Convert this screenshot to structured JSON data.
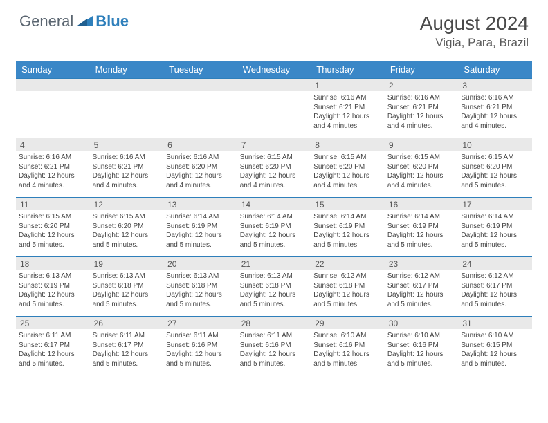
{
  "logo": {
    "general": "General",
    "blue": "Blue"
  },
  "title": {
    "month": "August 2024",
    "location": "Vigia, Para, Brazil"
  },
  "dow": [
    "Sunday",
    "Monday",
    "Tuesday",
    "Wednesday",
    "Thursday",
    "Friday",
    "Saturday"
  ],
  "colors": {
    "header_bg": "#3a87c7",
    "week_border": "#2e7fbb",
    "daynum_bg": "#e9e9e9",
    "text": "#444444"
  },
  "weeks": [
    [
      null,
      null,
      null,
      null,
      {
        "n": "1",
        "sr": "6:16 AM",
        "ss": "6:21 PM",
        "dl": "12 hours and 4 minutes."
      },
      {
        "n": "2",
        "sr": "6:16 AM",
        "ss": "6:21 PM",
        "dl": "12 hours and 4 minutes."
      },
      {
        "n": "3",
        "sr": "6:16 AM",
        "ss": "6:21 PM",
        "dl": "12 hours and 4 minutes."
      }
    ],
    [
      {
        "n": "4",
        "sr": "6:16 AM",
        "ss": "6:21 PM",
        "dl": "12 hours and 4 minutes."
      },
      {
        "n": "5",
        "sr": "6:16 AM",
        "ss": "6:21 PM",
        "dl": "12 hours and 4 minutes."
      },
      {
        "n": "6",
        "sr": "6:16 AM",
        "ss": "6:20 PM",
        "dl": "12 hours and 4 minutes."
      },
      {
        "n": "7",
        "sr": "6:15 AM",
        "ss": "6:20 PM",
        "dl": "12 hours and 4 minutes."
      },
      {
        "n": "8",
        "sr": "6:15 AM",
        "ss": "6:20 PM",
        "dl": "12 hours and 4 minutes."
      },
      {
        "n": "9",
        "sr": "6:15 AM",
        "ss": "6:20 PM",
        "dl": "12 hours and 4 minutes."
      },
      {
        "n": "10",
        "sr": "6:15 AM",
        "ss": "6:20 PM",
        "dl": "12 hours and 5 minutes."
      }
    ],
    [
      {
        "n": "11",
        "sr": "6:15 AM",
        "ss": "6:20 PM",
        "dl": "12 hours and 5 minutes."
      },
      {
        "n": "12",
        "sr": "6:15 AM",
        "ss": "6:20 PM",
        "dl": "12 hours and 5 minutes."
      },
      {
        "n": "13",
        "sr": "6:14 AM",
        "ss": "6:19 PM",
        "dl": "12 hours and 5 minutes."
      },
      {
        "n": "14",
        "sr": "6:14 AM",
        "ss": "6:19 PM",
        "dl": "12 hours and 5 minutes."
      },
      {
        "n": "15",
        "sr": "6:14 AM",
        "ss": "6:19 PM",
        "dl": "12 hours and 5 minutes."
      },
      {
        "n": "16",
        "sr": "6:14 AM",
        "ss": "6:19 PM",
        "dl": "12 hours and 5 minutes."
      },
      {
        "n": "17",
        "sr": "6:14 AM",
        "ss": "6:19 PM",
        "dl": "12 hours and 5 minutes."
      }
    ],
    [
      {
        "n": "18",
        "sr": "6:13 AM",
        "ss": "6:19 PM",
        "dl": "12 hours and 5 minutes."
      },
      {
        "n": "19",
        "sr": "6:13 AM",
        "ss": "6:18 PM",
        "dl": "12 hours and 5 minutes."
      },
      {
        "n": "20",
        "sr": "6:13 AM",
        "ss": "6:18 PM",
        "dl": "12 hours and 5 minutes."
      },
      {
        "n": "21",
        "sr": "6:13 AM",
        "ss": "6:18 PM",
        "dl": "12 hours and 5 minutes."
      },
      {
        "n": "22",
        "sr": "6:12 AM",
        "ss": "6:18 PM",
        "dl": "12 hours and 5 minutes."
      },
      {
        "n": "23",
        "sr": "6:12 AM",
        "ss": "6:17 PM",
        "dl": "12 hours and 5 minutes."
      },
      {
        "n": "24",
        "sr": "6:12 AM",
        "ss": "6:17 PM",
        "dl": "12 hours and 5 minutes."
      }
    ],
    [
      {
        "n": "25",
        "sr": "6:11 AM",
        "ss": "6:17 PM",
        "dl": "12 hours and 5 minutes."
      },
      {
        "n": "26",
        "sr": "6:11 AM",
        "ss": "6:17 PM",
        "dl": "12 hours and 5 minutes."
      },
      {
        "n": "27",
        "sr": "6:11 AM",
        "ss": "6:16 PM",
        "dl": "12 hours and 5 minutes."
      },
      {
        "n": "28",
        "sr": "6:11 AM",
        "ss": "6:16 PM",
        "dl": "12 hours and 5 minutes."
      },
      {
        "n": "29",
        "sr": "6:10 AM",
        "ss": "6:16 PM",
        "dl": "12 hours and 5 minutes."
      },
      {
        "n": "30",
        "sr": "6:10 AM",
        "ss": "6:16 PM",
        "dl": "12 hours and 5 minutes."
      },
      {
        "n": "31",
        "sr": "6:10 AM",
        "ss": "6:15 PM",
        "dl": "12 hours and 5 minutes."
      }
    ]
  ],
  "labels": {
    "sunrise": "Sunrise: ",
    "sunset": "Sunset: ",
    "daylight": "Daylight: "
  }
}
